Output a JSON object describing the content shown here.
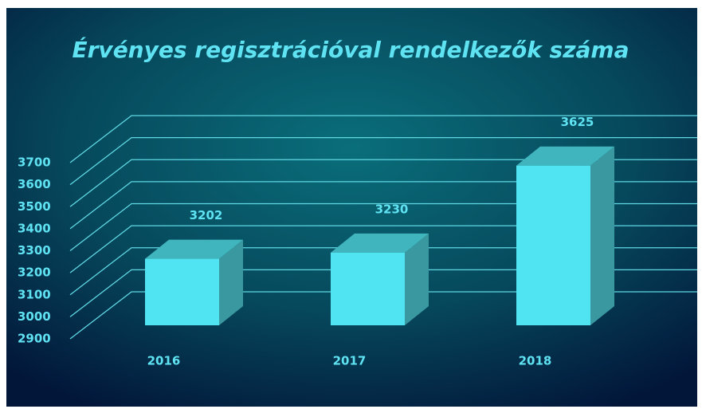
{
  "chart_data": {
    "type": "bar3d",
    "title": "Érvényes regisztrációval rendelkezők száma",
    "categories": [
      "2016",
      "2017",
      "2018"
    ],
    "values": [
      3202,
      3230,
      3625
    ],
    "color": "#50e4f2",
    "ylim": [
      2900,
      3700
    ],
    "yticks": [
      2900,
      3000,
      3100,
      3200,
      3300,
      3400,
      3500,
      3600,
      3700
    ],
    "grid": true
  }
}
